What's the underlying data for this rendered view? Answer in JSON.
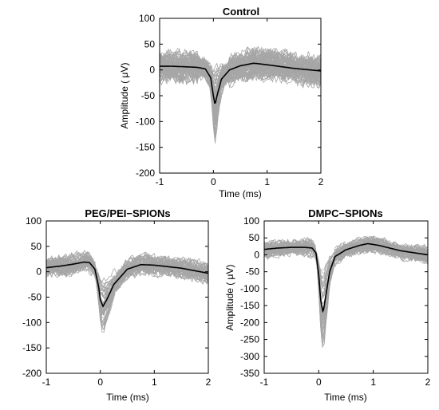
{
  "chart_data": [
    {
      "type": "line",
      "title": "Control",
      "xlabel": "Time (ms)",
      "ylabel": "Amplitude ( μV)",
      "xlim": [
        -1,
        2
      ],
      "ylim": [
        -200,
        100
      ],
      "xticks": [
        "-1",
        "0",
        "1",
        "2"
      ],
      "yticks": [
        "100",
        "50",
        "0",
        "-50",
        "-100",
        "-150",
        "-200"
      ],
      "grid": false,
      "traces_color": "#a6a6a6",
      "mean_color": "#000000",
      "series": [
        {
          "x": [
            -1.0,
            -0.75,
            -0.5,
            -0.3,
            -0.15,
            -0.05,
            0.0,
            0.03,
            0.08,
            0.15,
            0.3,
            0.5,
            0.75,
            1.0,
            1.5,
            2.0
          ],
          "values": [
            7,
            7,
            6,
            5,
            2,
            -15,
            -50,
            -67,
            -45,
            -18,
            0,
            8,
            13,
            10,
            3,
            -2
          ]
        }
      ]
    },
    {
      "type": "line",
      "title": "PEG/PEI−SPIONs",
      "xlabel": "Time (ms)",
      "ylabel": "Amplitude ( μV)",
      "xlim": [
        -1,
        2
      ],
      "ylim": [
        -200,
        100
      ],
      "xticks": [
        "-1",
        "0",
        "1",
        "2"
      ],
      "yticks": [
        "100",
        "50",
        "0",
        "-50",
        "-100",
        "-150",
        "-200"
      ],
      "grid": false,
      "traces_color": "#a6a6a6",
      "mean_color": "#000000",
      "series": [
        {
          "x": [
            -1.0,
            -0.75,
            -0.5,
            -0.3,
            -0.2,
            -0.1,
            -0.03,
            0.0,
            0.05,
            0.12,
            0.25,
            0.5,
            0.75,
            1.0,
            1.5,
            2.0
          ],
          "values": [
            8,
            11,
            15,
            19,
            18,
            5,
            -30,
            -55,
            -68,
            -55,
            -25,
            5,
            14,
            13,
            7,
            -3
          ]
        }
      ]
    },
    {
      "type": "line",
      "title": "DMPC−SPIONs",
      "xlabel": "Time (ms)",
      "ylabel": "Amplitude ( μV)",
      "xlim": [
        -1,
        2
      ],
      "ylim": [
        -350,
        100
      ],
      "xticks": [
        "-1",
        "0",
        "1",
        "2"
      ],
      "yticks": [
        "100",
        "50",
        "0",
        "-50",
        "-100",
        "-150",
        "-200",
        "-250",
        "-300",
        "-350"
      ],
      "grid": false,
      "traces_color": "#a6a6a6",
      "mean_color": "#000000",
      "series": [
        {
          "x": [
            -1.0,
            -0.75,
            -0.5,
            -0.25,
            -0.12,
            -0.05,
            0.0,
            0.04,
            0.08,
            0.13,
            0.2,
            0.3,
            0.5,
            0.75,
            0.9,
            1.1,
            1.5,
            2.0
          ],
          "values": [
            16,
            20,
            22,
            22,
            20,
            5,
            -60,
            -140,
            -170,
            -120,
            -50,
            -5,
            15,
            28,
            33,
            28,
            12,
            0
          ]
        }
      ]
    }
  ]
}
